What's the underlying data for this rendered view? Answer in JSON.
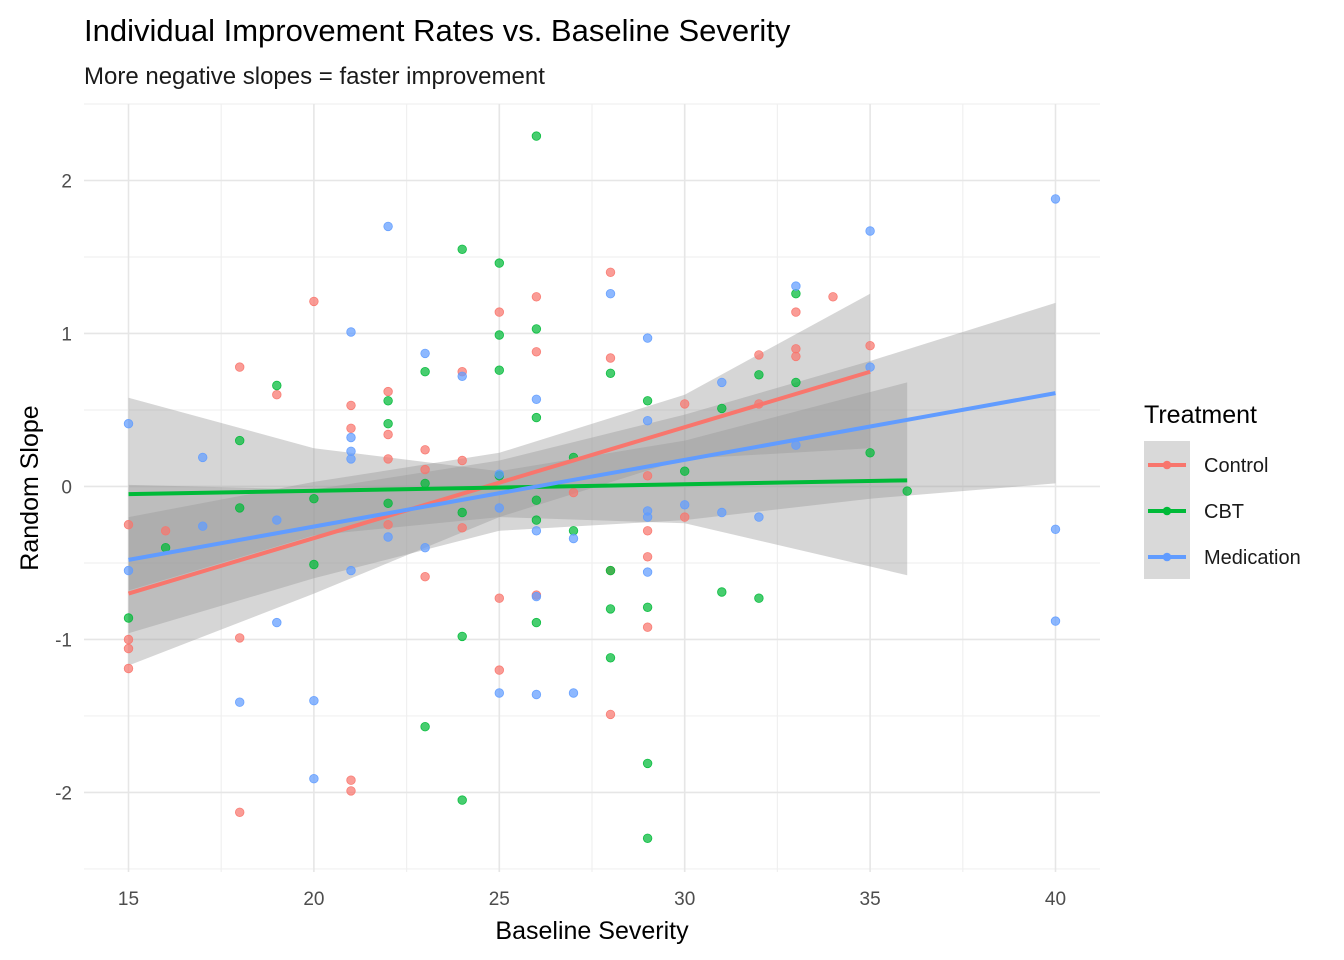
{
  "chart_data": {
    "type": "scatter",
    "title": "Individual Improvement Rates vs. Baseline Severity",
    "subtitle": "More negative slopes = faster improvement",
    "xlabel": "Baseline Severity",
    "ylabel": "Random Slope",
    "xlim": [
      13.8,
      41.2
    ],
    "ylim": [
      -2.52,
      2.5
    ],
    "x_ticks": [
      15,
      20,
      25,
      30,
      35,
      40
    ],
    "y_ticks": [
      -2,
      -1,
      0,
      1,
      2
    ],
    "grid": true,
    "legend": {
      "title": "Treatment",
      "position": "right"
    },
    "series": [
      {
        "name": "Control",
        "color": "#F8766D",
        "fit": {
          "x": [
            15,
            35
          ],
          "y": [
            -0.7,
            0.75
          ]
        },
        "band": {
          "x": [
            15,
            20,
            25,
            30,
            35
          ],
          "upper": [
            -0.2,
            0.03,
            0.22,
            0.6,
            1.26
          ],
          "lower": [
            -1.17,
            -0.7,
            -0.2,
            0.18,
            0.25
          ]
        },
        "points": [
          [
            15,
            -0.25
          ],
          [
            15,
            -1.0
          ],
          [
            15,
            -1.06
          ],
          [
            15,
            -1.19
          ],
          [
            16,
            -0.29
          ],
          [
            18,
            0.78
          ],
          [
            18,
            -0.99
          ],
          [
            18,
            -2.13
          ],
          [
            19,
            0.6
          ],
          [
            20,
            1.21
          ],
          [
            21,
            0.53
          ],
          [
            21,
            0.38
          ],
          [
            21,
            -1.92
          ],
          [
            21,
            -1.99
          ],
          [
            22,
            0.62
          ],
          [
            22,
            0.34
          ],
          [
            22,
            0.18
          ],
          [
            22,
            -0.25
          ],
          [
            23,
            0.24
          ],
          [
            23,
            0.11
          ],
          [
            23,
            -0.59
          ],
          [
            24,
            0.75
          ],
          [
            24,
            0.17
          ],
          [
            24,
            -0.27
          ],
          [
            25,
            1.14
          ],
          [
            25,
            -0.73
          ],
          [
            25,
            -1.2
          ],
          [
            26,
            1.24
          ],
          [
            26,
            0.88
          ],
          [
            26,
            -0.71
          ],
          [
            27,
            -0.04
          ],
          [
            28,
            1.4
          ],
          [
            28,
            0.84
          ],
          [
            28,
            -0.55
          ],
          [
            28,
            -1.49
          ],
          [
            29,
            0.07
          ],
          [
            29,
            -0.29
          ],
          [
            29,
            -0.46
          ],
          [
            29,
            -0.92
          ],
          [
            30,
            0.54
          ],
          [
            30,
            -0.2
          ],
          [
            32,
            0.86
          ],
          [
            32,
            0.54
          ],
          [
            33,
            1.14
          ],
          [
            33,
            0.9
          ],
          [
            33,
            0.85
          ],
          [
            34,
            1.24
          ],
          [
            35,
            0.92
          ]
        ]
      },
      {
        "name": "CBT",
        "color": "#00BA38",
        "fit": {
          "x": [
            15,
            36
          ],
          "y": [
            -0.05,
            0.04
          ]
        },
        "band": {
          "x": [
            15,
            20,
            25,
            30,
            36
          ],
          "upper": [
            0.58,
            0.25,
            0.1,
            0.3,
            0.68
          ],
          "lower": [
            -0.68,
            -0.32,
            -0.2,
            -0.24,
            -0.58
          ]
        },
        "points": [
          [
            15,
            -0.86
          ],
          [
            16,
            -0.4
          ],
          [
            18,
            0.3
          ],
          [
            18,
            -0.14
          ],
          [
            19,
            0.66
          ],
          [
            20,
            -0.51
          ],
          [
            20,
            -0.08
          ],
          [
            22,
            0.56
          ],
          [
            22,
            0.41
          ],
          [
            22,
            -0.11
          ],
          [
            23,
            0.75
          ],
          [
            23,
            0.02
          ],
          [
            23,
            -1.57
          ],
          [
            24,
            1.55
          ],
          [
            24,
            -0.17
          ],
          [
            24,
            -0.98
          ],
          [
            24,
            -2.05
          ],
          [
            25,
            1.46
          ],
          [
            25,
            0.99
          ],
          [
            25,
            0.76
          ],
          [
            25,
            0.07
          ],
          [
            26,
            2.29
          ],
          [
            26,
            1.03
          ],
          [
            26,
            0.45
          ],
          [
            26,
            -0.09
          ],
          [
            26,
            -0.22
          ],
          [
            26,
            -0.89
          ],
          [
            27,
            0.19
          ],
          [
            27,
            -0.29
          ],
          [
            28,
            0.74
          ],
          [
            28,
            -0.55
          ],
          [
            28,
            -0.8
          ],
          [
            28,
            -1.12
          ],
          [
            29,
            0.56
          ],
          [
            29,
            -0.79
          ],
          [
            29,
            -1.81
          ],
          [
            29,
            -2.3
          ],
          [
            30,
            0.1
          ],
          [
            31,
            0.51
          ],
          [
            31,
            -0.69
          ],
          [
            32,
            0.73
          ],
          [
            32,
            -0.73
          ],
          [
            33,
            1.26
          ],
          [
            33,
            0.68
          ],
          [
            35,
            0.22
          ],
          [
            36,
            -0.03
          ]
        ]
      },
      {
        "name": "Medication",
        "color": "#619CFF",
        "fit": {
          "x": [
            15,
            40
          ],
          "y": [
            -0.48,
            0.61
          ]
        },
        "band": {
          "x": [
            15,
            20,
            25,
            30,
            35,
            40
          ],
          "upper": [
            0.01,
            -0.02,
            0.17,
            0.47,
            0.82,
            1.2
          ],
          "lower": [
            -0.96,
            -0.6,
            -0.29,
            -0.22,
            -0.08,
            0.02
          ]
        },
        "points": [
          [
            15,
            0.41
          ],
          [
            15,
            -0.55
          ],
          [
            17,
            0.19
          ],
          [
            17,
            -0.26
          ],
          [
            18,
            -1.41
          ],
          [
            19,
            -0.22
          ],
          [
            19,
            -0.89
          ],
          [
            20,
            -1.4
          ],
          [
            20,
            -1.91
          ],
          [
            21,
            1.01
          ],
          [
            21,
            0.32
          ],
          [
            21,
            0.23
          ],
          [
            21,
            0.18
          ],
          [
            21,
            -0.55
          ],
          [
            22,
            1.7
          ],
          [
            22,
            -0.33
          ],
          [
            23,
            0.87
          ],
          [
            23,
            -0.4
          ],
          [
            24,
            0.72
          ],
          [
            25,
            0.08
          ],
          [
            25,
            -0.14
          ],
          [
            25,
            -1.35
          ],
          [
            26,
            0.57
          ],
          [
            26,
            -0.29
          ],
          [
            26,
            -0.72
          ],
          [
            26,
            -1.36
          ],
          [
            27,
            -0.34
          ],
          [
            27,
            -1.35
          ],
          [
            28,
            1.26
          ],
          [
            29,
            0.97
          ],
          [
            29,
            0.43
          ],
          [
            29,
            -0.16
          ],
          [
            29,
            -0.2
          ],
          [
            29,
            -0.56
          ],
          [
            30,
            -0.12
          ],
          [
            31,
            0.68
          ],
          [
            31,
            -0.17
          ],
          [
            32,
            -0.2
          ],
          [
            33,
            1.31
          ],
          [
            33,
            0.27
          ],
          [
            35,
            1.67
          ],
          [
            35,
            0.78
          ],
          [
            40,
            1.88
          ],
          [
            40,
            -0.28
          ],
          [
            40,
            -0.88
          ]
        ]
      }
    ]
  }
}
